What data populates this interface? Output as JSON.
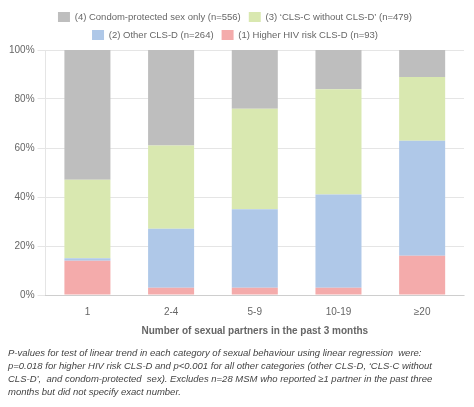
{
  "chart_data": {
    "type": "bar",
    "stacked": true,
    "categories": [
      "1",
      "2-4",
      "5-9",
      "10-19",
      "≥20"
    ],
    "series": [
      {
        "name": "(1) Higher HIV risk CLS-D (n=93)",
        "color": "#F4ABAB",
        "values": [
          14,
          3,
          3,
          3,
          16
        ]
      },
      {
        "name": "(2) Other CLS-D (n=264)",
        "color": "#AFC8E8",
        "values": [
          1,
          24,
          32,
          38,
          47
        ]
      },
      {
        "name": "(3) ‘CLS-C without CLS-D’ (n=479)",
        "color": "#D9E8B0",
        "values": [
          32,
          34,
          41,
          43,
          26
        ]
      },
      {
        "name": "(4) Condom-protected sex only (n=556)",
        "color": "#BEBEBE",
        "values": [
          53,
          39,
          24,
          16,
          11
        ]
      }
    ],
    "xlabel": "Number of sexual partners in the past 3 months",
    "ylim": [
      0,
      100
    ],
    "yticks": [
      {
        "value": 0,
        "label": "0%"
      },
      {
        "value": 20,
        "label": "20%"
      },
      {
        "value": 40,
        "label": "40%"
      },
      {
        "value": 60,
        "label": "60%"
      },
      {
        "value": 80,
        "label": "80%"
      },
      {
        "value": 100,
        "label": "100%"
      }
    ],
    "grid": true,
    "legend": "top",
    "footnote": [
      "P-values for test of linear trend in each category of sexual behaviour using linear regression  were:",
      "p=0.018 for higher HIV risk CLS-D and p<0.001 for all other categories (other CLS-D, ‘CLS-C without",
      "CLS-D’,  and condom-protected  sex). Excludes n=28 MSM who reported ≥1 partner in the past three",
      "months but did not specify exact number."
    ]
  }
}
